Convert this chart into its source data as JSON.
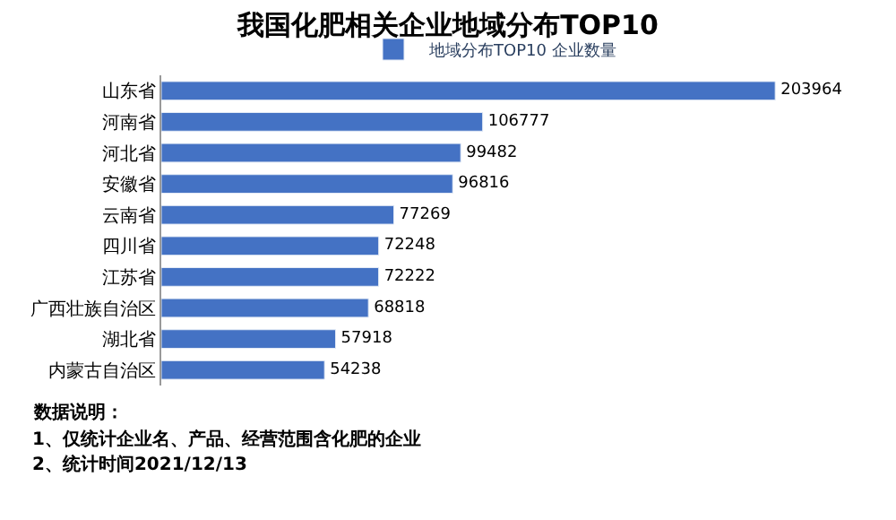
{
  "chart_data": {
    "type": "bar",
    "orientation": "horizontal",
    "title": "我国化肥相关企业地域分布TOP10",
    "categories": [
      "山东省",
      "河南省",
      "河北省",
      "安徽省",
      "云南省",
      "四川省",
      "江苏省",
      "广西壮族自治区",
      "湖北省",
      "内蒙古自治区"
    ],
    "series": [
      {
        "name": "地域分布TOP10 企业数量",
        "color": "#4472c4",
        "values": [
          203964,
          106777,
          99482,
          96816,
          77269,
          72248,
          72222,
          68818,
          57918,
          54238
        ]
      }
    ],
    "data_labels": true,
    "legend": "top",
    "annotations": [
      "数据说明：",
      "1、仅统计企业名、产品、经营范围含化肥的企业",
      "2、统计时间2021/12/13"
    ]
  }
}
